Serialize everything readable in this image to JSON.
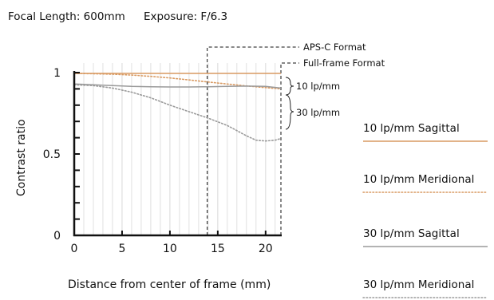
{
  "header": {
    "focal_length": "Focal Length: 600mm",
    "exposure": "Exposure: F/6.3"
  },
  "annotations": {
    "apsc": "APS-C Format",
    "fullframe": "Full-frame Format",
    "group_10": "10 lp/mm",
    "group_30": "30 lp/mm"
  },
  "colors": {
    "sagittal_10": "#d99a62",
    "meridional_10": "#d99a62",
    "sagittal_30": "#9a9a9a",
    "meridional_30": "#9a9a9a",
    "frame": "#111111",
    "grid": "#d9d9d9"
  },
  "chart_data": {
    "type": "line",
    "title": "",
    "xlabel": "Distance from center of frame (mm)",
    "ylabel": "Contrast ratio",
    "xlim": [
      0,
      21.6
    ],
    "ylim": [
      0,
      1
    ],
    "x_ticks": [
      0,
      5,
      10,
      15,
      20
    ],
    "x_tick_labels": [
      "0",
      "5",
      "10",
      "15",
      "20"
    ],
    "y_tick_labels": [
      {
        "value": 0,
        "label": "0"
      },
      {
        "value": 0.5,
        "label": "0.5"
      },
      {
        "value": 1,
        "label": "1"
      }
    ],
    "grid": true,
    "format_lines": {
      "apsc_mm": 13.9,
      "fullframe_mm": 21.6
    },
    "legend_position": "right",
    "series": [
      {
        "name": "10 lp/mm Sagittal",
        "style": "solid",
        "color_key": "sagittal_10",
        "x": [
          0,
          2,
          4,
          6,
          8,
          10,
          12,
          14,
          16,
          18,
          20,
          21.6
        ],
        "y": [
          0.995,
          0.995,
          0.995,
          0.995,
          0.995,
          0.995,
          0.995,
          0.995,
          0.995,
          0.995,
          0.995,
          0.995
        ]
      },
      {
        "name": "10 lp/mm Meridional",
        "style": "dotted",
        "color_key": "meridional_10",
        "x": [
          0,
          2,
          4,
          6,
          8,
          10,
          12,
          14,
          16,
          18,
          20,
          21.6
        ],
        "y": [
          0.995,
          0.993,
          0.99,
          0.985,
          0.977,
          0.967,
          0.955,
          0.942,
          0.93,
          0.918,
          0.908,
          0.9
        ]
      },
      {
        "name": "30 lp/mm Sagittal",
        "style": "solid",
        "color_key": "sagittal_30",
        "x": [
          0,
          2,
          4,
          6,
          8,
          10,
          12,
          14,
          16,
          18,
          20,
          21.6
        ],
        "y": [
          0.93,
          0.925,
          0.92,
          0.915,
          0.913,
          0.912,
          0.912,
          0.913,
          0.915,
          0.917,
          0.915,
          0.905
        ]
      },
      {
        "name": "30 lp/mm Meridional",
        "style": "dotted",
        "color_key": "meridional_30",
        "x": [
          0,
          2,
          4,
          6,
          8,
          10,
          12,
          14,
          16,
          18,
          19,
          20,
          21,
          21.6
        ],
        "y": [
          0.925,
          0.92,
          0.905,
          0.88,
          0.845,
          0.8,
          0.76,
          0.72,
          0.675,
          0.612,
          0.585,
          0.58,
          0.585,
          0.595
        ]
      }
    ]
  }
}
